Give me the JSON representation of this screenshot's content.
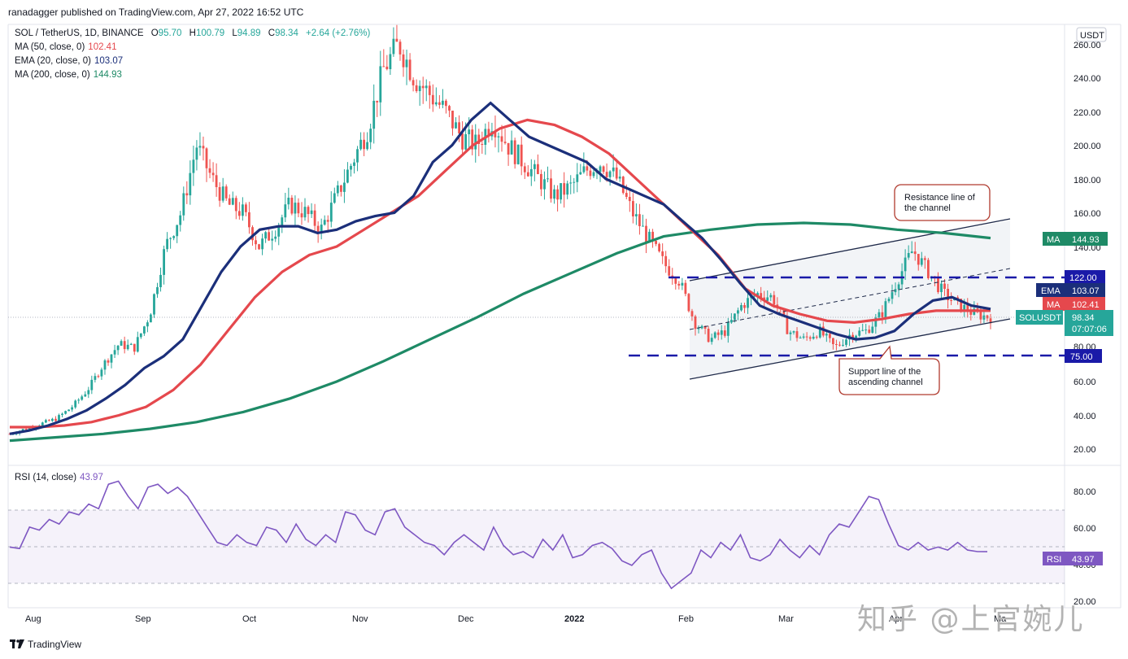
{
  "header": {
    "published": "ranadagger published on TradingView.com, Apr 27, 2022 16:52 UTC"
  },
  "legend": {
    "symbol": "SOL / TetherUS, 1D, BINANCE",
    "ohlc": [
      {
        "k": "O",
        "v": "95.70"
      },
      {
        "k": "H",
        "v": "100.79"
      },
      {
        "k": "L",
        "v": "94.89"
      },
      {
        "k": "C",
        "v": "98.34"
      },
      {
        "k": "",
        "v": "+2.64 (+2.76%)"
      }
    ],
    "ma50": {
      "label": "MA (50, close, 0)",
      "value": "102.41"
    },
    "ema20": {
      "label": "EMA (20, close, 0)",
      "value": "103.07"
    },
    "ma200": {
      "label": "MA (200, close, 0)",
      "value": "144.93"
    },
    "rsi": {
      "label": "RSI (14, close)",
      "value": "43.97"
    }
  },
  "currency_badge": "USDT",
  "price_axis": [
    "260.00",
    "240.00",
    "220.00",
    "200.00",
    "180.00",
    "160.00",
    "140.00",
    "80.00",
    "60.00",
    "40.00",
    "20.00"
  ],
  "rsi_axis": [
    "80.00",
    "60.00",
    "40.00",
    "20.00"
  ],
  "time_axis": [
    "Aug",
    "Sep",
    "Oct",
    "Nov",
    "Dec",
    "2022",
    "Feb",
    "Mar",
    "Apr",
    "Ma"
  ],
  "price_tags": {
    "ma200": {
      "label": "MA",
      "value": "144.93"
    },
    "level122": "122.00",
    "ema": {
      "label": "EMA",
      "value": "103.07"
    },
    "ma50": {
      "label": "MA",
      "value": "102.41"
    },
    "last": {
      "label": "SOLUSDT",
      "value": "98.34",
      "countdown": "07:07:06"
    },
    "level75": "75.00",
    "rsi": {
      "label": "RSI",
      "value": "43.97"
    }
  },
  "annotations": {
    "resistance": "Resistance line of the channel",
    "support": "Support line of the ascending channel"
  },
  "footer": {
    "brand": "TradingView"
  },
  "watermark": "知乎 @上官婉儿",
  "colors": {
    "up": "#26a69a",
    "down": "#ef5350",
    "ma50": "#e5484d",
    "ema20": "#1b2f7a",
    "ma200": "#1e8a66",
    "rsi": "#7e57c2",
    "level": "#1a1aa8"
  },
  "chart_data": {
    "type": "candlestick",
    "symbol": "SOL / TetherUS",
    "interval": "1D",
    "ylim": [
      20,
      260
    ],
    "x": [
      "Aug",
      "Sep",
      "Oct",
      "Nov",
      "Dec",
      "2022",
      "Feb",
      "Mar",
      "Apr",
      "Ma"
    ],
    "close_path": [
      29,
      32,
      35,
      38,
      45,
      55,
      70,
      82,
      80,
      100,
      140,
      160,
      200,
      180,
      165,
      160,
      140,
      150,
      165,
      160,
      150,
      170,
      190,
      210,
      245,
      260,
      240,
      230,
      220,
      205,
      200,
      215,
      200,
      190,
      180,
      170,
      175,
      185,
      190,
      180,
      160,
      145,
      130,
      120,
      95,
      85,
      90,
      105,
      112,
      110,
      90,
      85,
      90,
      80,
      88,
      90,
      100,
      120,
      138,
      125,
      112,
      105,
      100,
      98
    ],
    "ema20": [
      29,
      31,
      34,
      38,
      43,
      50,
      58,
      68,
      75,
      85,
      105,
      125,
      140,
      150,
      152,
      152,
      148,
      150,
      155,
      158,
      160,
      170,
      190,
      200,
      215,
      225,
      215,
      205,
      200,
      195,
      190,
      180,
      175,
      170,
      165,
      155,
      145,
      132,
      118,
      105,
      100,
      96,
      92,
      88,
      85,
      86,
      90,
      100,
      108,
      110,
      105,
      103
    ],
    "ma50": [
      33,
      33,
      34,
      36,
      40,
      45,
      55,
      70,
      90,
      110,
      125,
      135,
      140,
      150,
      160,
      170,
      185,
      200,
      210,
      215,
      212,
      205,
      195,
      180,
      165,
      150,
      135,
      115,
      105,
      100,
      96,
      95,
      97,
      100,
      102,
      102,
      102
    ],
    "ma200": [
      25,
      27,
      29,
      32,
      36,
      42,
      50,
      60,
      72,
      85,
      98,
      112,
      124,
      136,
      146,
      150,
      153,
      154,
      153,
      150,
      148,
      145
    ],
    "levels": [
      122.0,
      75.0
    ],
    "annotations": [
      "Resistance line of the channel",
      "Support line of the ascending channel"
    ]
  },
  "rsi_data": {
    "ylim": [
      10,
      95
    ],
    "levels": [
      70,
      50,
      30
    ],
    "values": [
      47,
      46,
      60,
      58,
      65,
      62,
      70,
      68,
      75,
      72,
      88,
      90,
      80,
      72,
      86,
      88,
      82,
      86,
      80,
      70,
      60,
      50,
      48,
      55,
      50,
      48,
      60,
      58,
      50,
      62,
      52,
      48,
      55,
      50,
      70,
      68,
      58,
      55,
      70,
      72,
      60,
      55,
      50,
      48,
      42,
      50,
      55,
      50,
      45,
      60,
      48,
      42,
      44,
      40,
      52,
      45,
      55,
      40,
      42,
      48,
      50,
      46,
      38,
      35,
      42,
      45,
      30,
      20,
      25,
      30,
      45,
      40,
      50,
      45,
      55,
      40,
      38,
      42,
      52,
      45,
      40,
      48,
      42,
      55,
      62,
      60,
      70,
      80,
      78,
      62,
      48,
      45,
      50,
      45,
      47,
      45,
      50,
      45,
      44,
      43.97
    ]
  }
}
